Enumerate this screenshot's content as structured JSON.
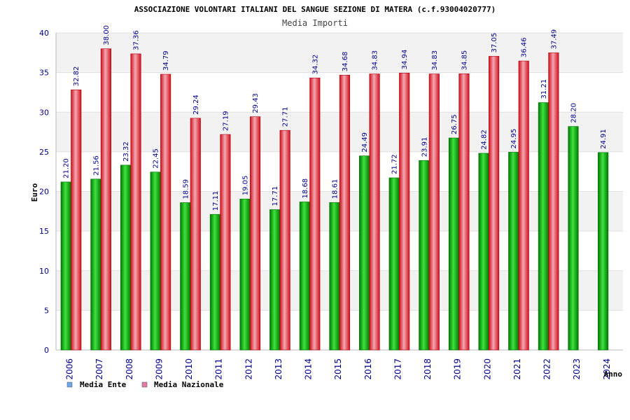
{
  "chart_data": {
    "type": "bar",
    "title": "ASSOCIAZIONE VOLONTARI ITALIANI DEL SANGUE SEZIONE DI MATERA (c.f.93004020777)",
    "subtitle": "Media Importi",
    "xlabel": "Anno",
    "ylabel": "Euro",
    "ylim": [
      0,
      40
    ],
    "yticks": [
      0,
      5,
      10,
      15,
      20,
      25,
      30,
      35,
      40
    ],
    "grid": true,
    "legend_position": "bottom-left",
    "categories": [
      "2006",
      "2007",
      "2008",
      "2009",
      "2010",
      "2011",
      "2012",
      "2013",
      "2014",
      "2015",
      "2016",
      "2017",
      "2018",
      "2019",
      "2020",
      "2021",
      "2022",
      "2023",
      "2024"
    ],
    "series": [
      {
        "name": "Media Ente",
        "color": "#00b000",
        "legend_color": "#6fa8e8",
        "values": [
          21.2,
          21.56,
          23.32,
          22.45,
          18.59,
          17.11,
          19.05,
          17.71,
          18.68,
          18.61,
          24.49,
          21.72,
          23.91,
          26.75,
          24.82,
          24.95,
          31.21,
          28.2,
          24.91
        ],
        "labels": [
          "21.20",
          "21.56",
          "23.32",
          "22.45",
          "18.59",
          "17.11",
          "19.05",
          "17.71",
          "18.68",
          "18.61",
          "24.49",
          "21.72",
          "23.91",
          "26.75",
          "24.82",
          "24.95",
          "31.21",
          "28.20",
          "24.91"
        ]
      },
      {
        "name": "Media Nazionale",
        "color": "#e0202a",
        "legend_color": "#e27aa8",
        "values": [
          32.82,
          38.0,
          37.36,
          34.79,
          29.24,
          27.19,
          29.43,
          27.71,
          34.32,
          34.68,
          34.83,
          34.94,
          34.83,
          34.85,
          37.05,
          36.46,
          37.49,
          null,
          null
        ],
        "labels": [
          "32.82",
          "38.00",
          "37.36",
          "34.79",
          "29.24",
          "27.19",
          "29.43",
          "27.71",
          "34.32",
          "34.68",
          "34.83",
          "34.94",
          "34.83",
          "34.85",
          "37.05",
          "36.46",
          "37.49",
          null,
          null
        ]
      }
    ]
  }
}
